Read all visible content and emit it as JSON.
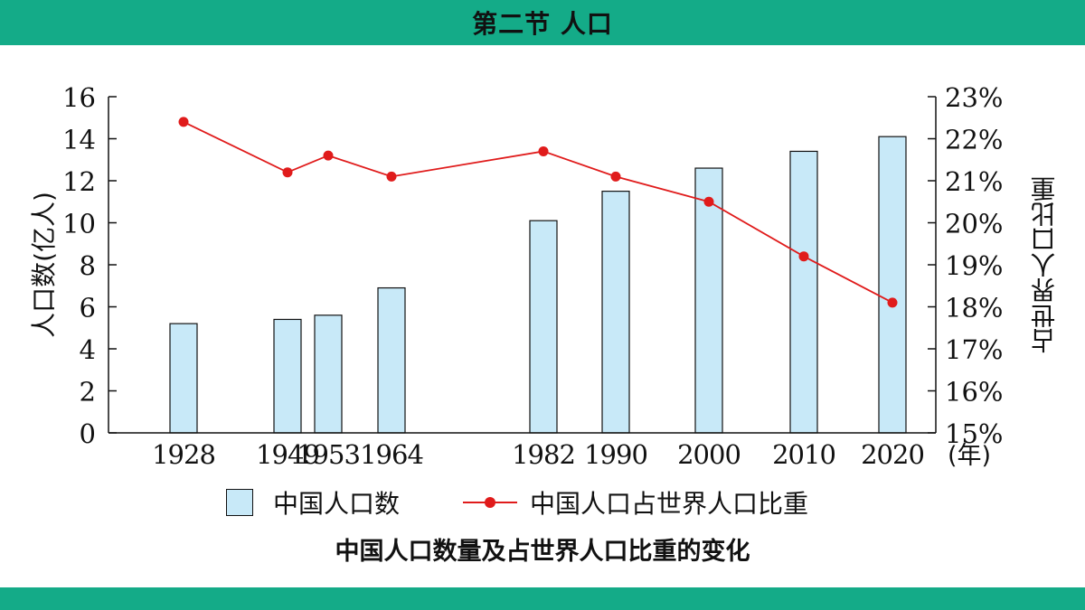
{
  "header": {
    "title": "第二节 人口"
  },
  "chart_data": {
    "type": "bar",
    "categories": [
      "1928",
      "1949",
      "1953",
      "1964",
      "1982",
      "1990",
      "2000",
      "2010",
      "2020"
    ],
    "series": [
      {
        "name": "中国人口数",
        "type": "bar",
        "axis": "left",
        "values": [
          5.2,
          5.4,
          5.6,
          6.9,
          10.1,
          11.5,
          12.6,
          13.4,
          14.1
        ]
      },
      {
        "name": "中国人口占世界人口比重",
        "type": "line",
        "axis": "right",
        "values": [
          22.4,
          21.2,
          21.6,
          21.1,
          21.7,
          21.1,
          20.5,
          19.2,
          18.1
        ]
      }
    ],
    "ylabel": "人口数(亿人)",
    "y2label": "占世界人口比重",
    "xunit": "(年)",
    "ylim": [
      0,
      16
    ],
    "y_ticks": [
      "0",
      "2",
      "4",
      "6",
      "8",
      "10",
      "12",
      "14",
      "16"
    ],
    "y2lim": [
      15,
      23
    ],
    "y2_ticks": [
      "15%",
      "16%",
      "17%",
      "18%",
      "19%",
      "20%",
      "21%",
      "22%",
      "23%"
    ],
    "title": "中国人口数量及占世界人口比重的变化",
    "colors": {
      "bar": "#c8e9f8",
      "line": "#e01b1b"
    }
  }
}
